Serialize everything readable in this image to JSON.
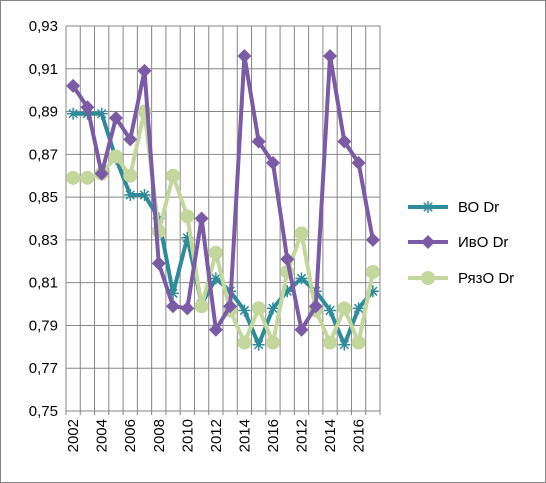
{
  "chart_data": {
    "type": "line",
    "title": "",
    "xlabel": "",
    "ylabel": "",
    "ylim": [
      0.75,
      0.93
    ],
    "yticks": [
      "0,75",
      "0,77",
      "0,79",
      "0,81",
      "0,83",
      "0,85",
      "0,87",
      "0,89",
      "0,91",
      "0,93"
    ],
    "x": [
      2002,
      2003,
      2004,
      2005,
      2006,
      2007,
      2008,
      2009,
      2010,
      2011,
      2012,
      2013,
      2014,
      2015,
      2016,
      2017,
      2012,
      2013,
      2014,
      2015,
      2016,
      2017
    ],
    "xtick_labels": [
      "2002",
      "",
      "2004",
      "",
      "2006",
      "",
      "2008",
      "",
      "2010",
      "",
      "2012",
      "",
      "2014",
      "",
      "2016",
      "",
      "2012",
      "",
      "2014",
      "",
      "2016",
      ""
    ],
    "grid": true,
    "legend_position": "right",
    "series": [
      {
        "name": "ВО Dr",
        "color": "#2e8b9a",
        "marker": "star",
        "values": [
          0.889,
          0.889,
          0.889,
          0.868,
          0.851,
          0.851,
          0.84,
          0.805,
          0.831,
          0.8,
          0.812,
          0.806,
          0.797,
          0.781,
          0.798,
          0.806,
          0.812,
          0.806,
          0.797,
          0.781,
          0.798,
          0.806
        ]
      },
      {
        "name": "ИвО Dr",
        "color": "#7b5aa6",
        "marker": "diamond",
        "values": [
          0.902,
          0.892,
          0.861,
          0.887,
          0.877,
          0.909,
          0.819,
          0.799,
          0.798,
          0.84,
          0.788,
          0.799,
          0.916,
          0.876,
          0.866,
          0.821,
          0.788,
          0.799,
          0.916,
          0.876,
          0.866,
          0.83
        ]
      },
      {
        "name": "РязО Dr",
        "color": "#c3d69b",
        "marker": "circle",
        "values": [
          0.859,
          0.859,
          0.861,
          0.869,
          0.86,
          0.89,
          0.834,
          0.86,
          0.841,
          0.799,
          0.824,
          0.797,
          0.782,
          0.798,
          0.782,
          0.815,
          0.833,
          0.797,
          0.782,
          0.798,
          0.782,
          0.815
        ]
      }
    ]
  }
}
